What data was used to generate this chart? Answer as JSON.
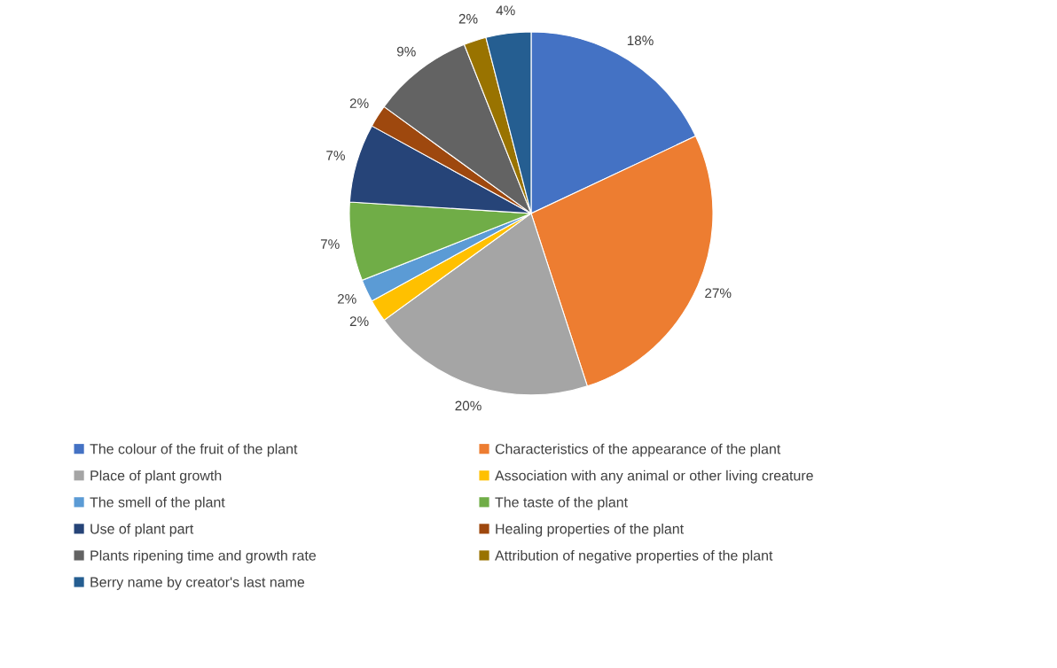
{
  "chart_data": {
    "type": "pie",
    "categories": [
      "The colour of the fruit of the plant",
      "Characteristics of the appearance of the plant",
      "Place of plant growth",
      "Association with any animal or other living creature",
      "The smell of the plant",
      "The taste of the plant",
      "Use of plant part",
      "Healing properties of the plant",
      "Plants ripening time and growth rate",
      "Attribution of negative properties of the plant",
      "Berry name by creator's last name"
    ],
    "values": [
      18,
      27,
      20,
      2,
      2,
      7,
      7,
      2,
      9,
      2,
      4
    ],
    "colors": [
      "#4472c4",
      "#ed7d31",
      "#a5a5a5",
      "#ffc000",
      "#5b9bd5",
      "#70ad47",
      "#264478",
      "#9e480e",
      "#636363",
      "#997300",
      "#255e91"
    ],
    "value_labels": [
      "18%",
      "27%",
      "20%",
      "2%",
      "2%",
      "7%",
      "7%",
      "2%",
      "9%",
      "2%",
      "4%"
    ],
    "legend": "bottom"
  }
}
